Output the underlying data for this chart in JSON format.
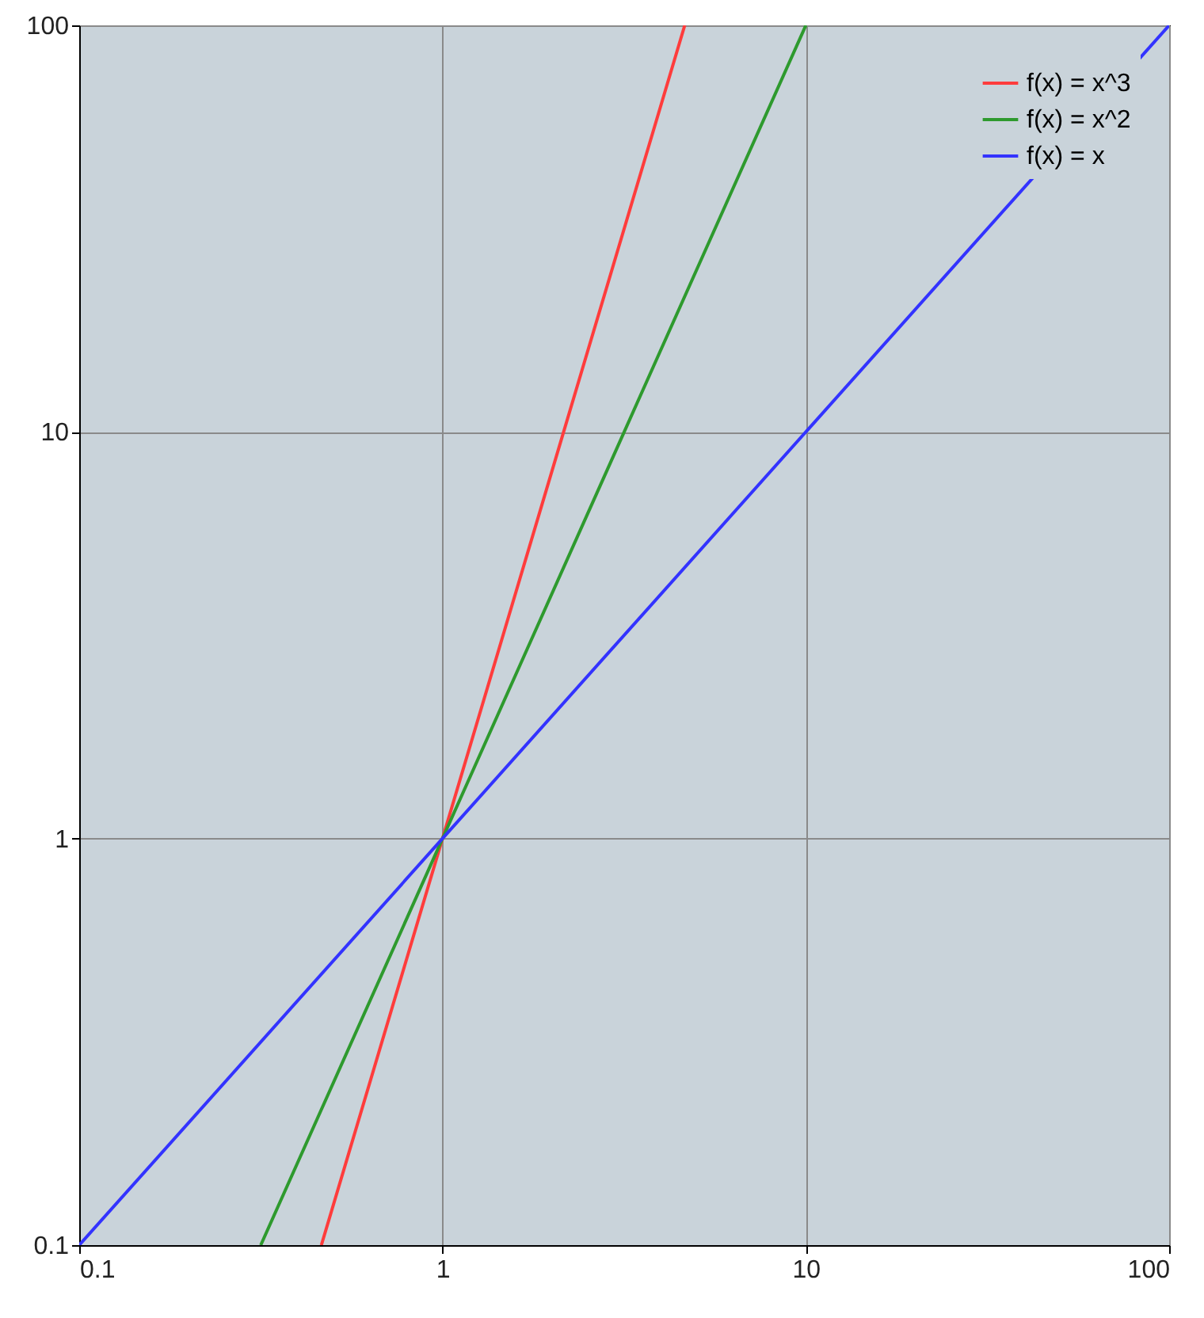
{
  "chart_data": {
    "type": "line",
    "log": "xy",
    "grid": true,
    "legend": "top right",
    "line_style": "solid",
    "xlim": [
      0.1,
      100
    ],
    "ylim": [
      0.1,
      100
    ],
    "xticks": [
      0.1,
      1,
      10,
      100
    ],
    "yticks": [
      0.1,
      1,
      10,
      100
    ],
    "series": [
      {
        "name": "f(x) = x^3",
        "color": "#ff3c3c",
        "x": [
          0.464,
          1,
          2.154,
          4.642
        ],
        "values": [
          0.1,
          1,
          10,
          100
        ]
      },
      {
        "name": "f(x) = x^2",
        "color": "#2e9a2e",
        "x": [
          0.316,
          1,
          3.162,
          10
        ],
        "values": [
          0.1,
          1,
          10,
          100
        ]
      },
      {
        "name": "f(x) = x",
        "color": "#3333ff",
        "x": [
          0.1,
          1,
          10,
          100
        ],
        "values": [
          0.1,
          1,
          10,
          100
        ]
      }
    ]
  }
}
